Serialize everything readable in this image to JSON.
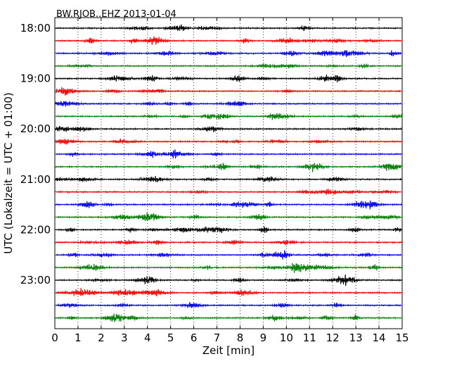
{
  "chart_data": {
    "type": "line",
    "title": "BW.RJOB..EHZ 2013-01-04",
    "xlabel": "Zeit  [min]",
    "ylabel": "UTC (Lokalzeit = UTC + 01:00)",
    "xlim": [
      0,
      15
    ],
    "x_ticks": [
      0,
      1,
      2,
      3,
      4,
      5,
      6,
      7,
      8,
      9,
      10,
      11,
      12,
      13,
      14,
      15
    ],
    "x_tick_labels": [
      "0",
      "1",
      "2",
      "3",
      "4",
      "5",
      "6",
      "7",
      "8",
      "9",
      "10",
      "11",
      "12",
      "13",
      "14",
      "15"
    ],
    "vertical_grid": "dotted",
    "y_tick_labels": [
      "18:00",
      "19:00",
      "20:00",
      "21:00",
      "22:00",
      "23:00"
    ],
    "traces_per_hour": 4,
    "minutes_per_trace": 15,
    "start_time": "18:00",
    "trace_count": 24,
    "trace_colors": [
      "#000000",
      "#ff0000",
      "#0000ff",
      "#008000"
    ]
  }
}
